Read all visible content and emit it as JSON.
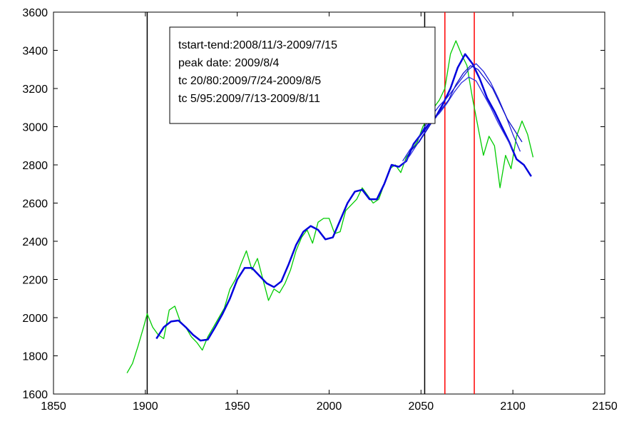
{
  "chart_data": {
    "type": "line",
    "title": "",
    "xlabel": "",
    "ylabel": "",
    "xlim": [
      1850,
      2150
    ],
    "ylim": [
      1600,
      3600
    ],
    "grid": false,
    "x_ticks": [
      1850,
      1900,
      1950,
      2000,
      2050,
      2100,
      2150
    ],
    "y_ticks": [
      1600,
      1800,
      2000,
      2200,
      2400,
      2600,
      2800,
      3000,
      3200,
      3400,
      3600
    ],
    "annotation": [
      "tstart-tend:2008/11/3-2009/7/15",
      "peak date: 2009/8/4",
      "tc 20/80:2009/7/24-2009/8/5",
      "tc 5/95:2009/7/13-2009/8/11"
    ],
    "vertical_lines": [
      {
        "x": 1901,
        "color": "#000000"
      },
      {
        "x": 2052,
        "color": "#000000"
      },
      {
        "x": 2063,
        "color": "#ff0000"
      },
      {
        "x": 2079,
        "color": "#ff0000"
      }
    ],
    "series": [
      {
        "color": "#00cc00",
        "x": [
          1890,
          1893,
          1896,
          1899,
          1901,
          1904,
          1907,
          1910,
          1913,
          1916,
          1919,
          1922,
          1925,
          1928,
          1931,
          1934,
          1937,
          1940,
          1943,
          1946,
          1949,
          1952,
          1955,
          1958,
          1961,
          1964,
          1967,
          1970,
          1973,
          1976,
          1979,
          1982,
          1985,
          1988,
          1991,
          1994,
          1997,
          2000,
          2003,
          2006,
          2009,
          2012,
          2015,
          2018,
          2021,
          2024,
          2027,
          2030,
          2033,
          2036,
          2039,
          2042,
          2045,
          2048,
          2051,
          2054,
          2057,
          2060,
          2063,
          2066,
          2069,
          2072,
          2075,
          2078,
          2081,
          2084,
          2087,
          2090,
          2093,
          2096,
          2099,
          2102,
          2105,
          2108,
          2111
        ],
        "y": [
          1710,
          1760,
          1850,
          1950,
          2020,
          1950,
          1910,
          1890,
          2040,
          2060,
          1980,
          1950,
          1900,
          1870,
          1830,
          1900,
          1950,
          2000,
          2050,
          2150,
          2200,
          2280,
          2350,
          2250,
          2310,
          2200,
          2090,
          2150,
          2130,
          2180,
          2250,
          2350,
          2420,
          2460,
          2390,
          2500,
          2520,
          2520,
          2440,
          2450,
          2560,
          2590,
          2620,
          2680,
          2640,
          2600,
          2620,
          2700,
          2780,
          2800,
          2760,
          2840,
          2880,
          2920,
          3000,
          3050,
          3100,
          3140,
          3200,
          3380,
          3450,
          3380,
          3320,
          3150,
          3000,
          2850,
          2950,
          2900,
          2680,
          2850,
          2780,
          2950,
          3030,
          2960,
          2840
        ]
      },
      {
        "color": "#0000dd",
        "x": [
          1906,
          1910,
          1914,
          1918,
          1922,
          1926,
          1930,
          1934,
          1938,
          1942,
          1946,
          1950,
          1954,
          1958,
          1962,
          1966,
          1970,
          1974,
          1978,
          1982,
          1986,
          1990,
          1994,
          1998,
          2002,
          2006,
          2010,
          2014,
          2018,
          2022,
          2026,
          2030,
          2034,
          2038,
          2042,
          2046,
          2050,
          2054,
          2058,
          2062,
          2066,
          2070,
          2074,
          2078,
          2082,
          2086,
          2090,
          2094,
          2098,
          2102,
          2106,
          2110
        ],
        "y": [
          1890,
          1950,
          1980,
          1985,
          1950,
          1910,
          1880,
          1885,
          1950,
          2020,
          2100,
          2200,
          2260,
          2260,
          2220,
          2180,
          2160,
          2190,
          2280,
          2380,
          2450,
          2480,
          2460,
          2410,
          2420,
          2510,
          2600,
          2660,
          2670,
          2620,
          2620,
          2700,
          2800,
          2790,
          2820,
          2910,
          2960,
          3010,
          3050,
          3120,
          3200,
          3310,
          3380,
          3330,
          3250,
          3150,
          3080,
          3000,
          2920,
          2830,
          2800,
          2740
        ]
      },
      {
        "color": "#2020dd",
        "x": [
          2040,
          2044,
          2048,
          2052,
          2056,
          2060,
          2064,
          2068,
          2072,
          2076,
          2080,
          2084,
          2088,
          2092,
          2096,
          2100,
          2104
        ],
        "y": [
          2820,
          2880,
          2930,
          3000,
          3060,
          3110,
          3150,
          3200,
          3250,
          3300,
          3330,
          3290,
          3230,
          3150,
          3060,
          2960,
          2870
        ]
      },
      {
        "color": "#3030e0",
        "x": [
          2040,
          2044,
          2048,
          2052,
          2056,
          2060,
          2064,
          2068,
          2072,
          2076,
          2080,
          2084,
          2088,
          2092,
          2096,
          2100
        ],
        "y": [
          2800,
          2850,
          2910,
          2970,
          3030,
          3070,
          3120,
          3180,
          3230,
          3260,
          3240,
          3170,
          3100,
          3020,
          2950,
          2880
        ]
      },
      {
        "color": "#1010cc",
        "x": [
          2045,
          2049,
          2053,
          2057,
          2061,
          2065,
          2069,
          2073,
          2077,
          2081,
          2085,
          2089,
          2093,
          2097,
          2101,
          2105
        ],
        "y": [
          2880,
          2920,
          2980,
          3040,
          3090,
          3140,
          3220,
          3280,
          3320,
          3300,
          3250,
          3200,
          3120,
          3040,
          2980,
          2920
        ]
      }
    ]
  }
}
